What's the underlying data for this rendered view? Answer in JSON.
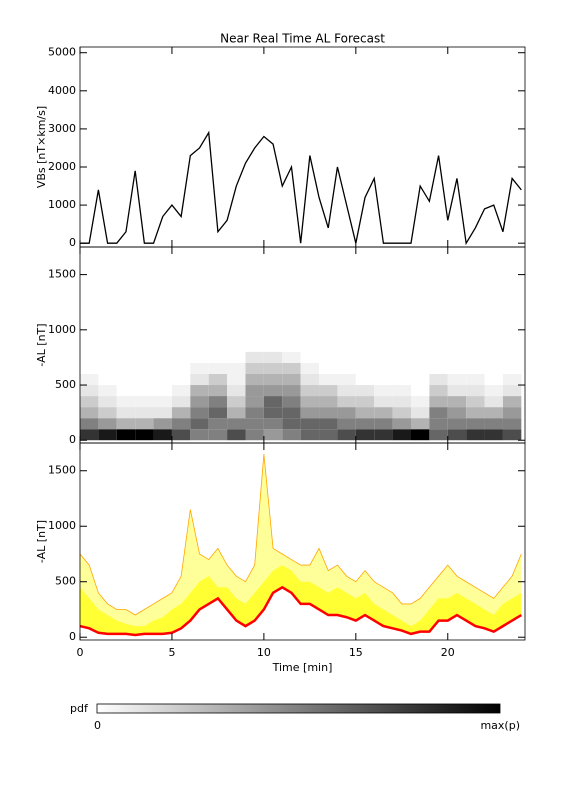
{
  "chart_data": [
    {
      "type": "line",
      "title": "Near Real Time AL Forecast",
      "ylabel": "VBs [nT×km/s]",
      "x": [
        0,
        0.5,
        1,
        1.5,
        2,
        2.5,
        3,
        3.5,
        4,
        4.5,
        5,
        5.5,
        6,
        6.5,
        7,
        7.5,
        8,
        8.5,
        9,
        9.5,
        10,
        10.5,
        11,
        11.5,
        12,
        12.5,
        13,
        13.5,
        14,
        14.5,
        15,
        15.5,
        16,
        16.5,
        17,
        17.5,
        18,
        18.5,
        19,
        19.5,
        20,
        20.5,
        21,
        21.5,
        22,
        22.5,
        23,
        23.5,
        24
      ],
      "values": [
        0,
        0,
        1400,
        0,
        0,
        300,
        1900,
        0,
        0,
        700,
        1000,
        700,
        2300,
        2500,
        2900,
        300,
        600,
        1500,
        2100,
        2500,
        2800,
        2600,
        1500,
        2000,
        0,
        2300,
        1200,
        400,
        2000,
        1000,
        0,
        1200,
        1700,
        0,
        0,
        0,
        0,
        1500,
        1100,
        2300,
        600,
        1700,
        0,
        400,
        900,
        1000,
        300,
        1700,
        1400
      ],
      "color": "#000000",
      "xlim": [
        0,
        24.2
      ],
      "xticks": [
        0,
        5,
        10,
        15,
        20
      ],
      "ylim": [
        -100,
        5150
      ],
      "yticks": [
        0,
        1000,
        2000,
        3000,
        4000,
        5000
      ]
    },
    {
      "type": "heatmap",
      "ylabel": "-AL [nT]",
      "xbins": [
        0,
        1,
        2,
        3,
        4,
        5,
        6,
        7,
        8,
        9,
        10,
        11,
        12,
        13,
        14,
        15,
        16,
        17,
        18,
        19,
        20,
        21,
        22,
        23,
        24
      ],
      "ybins": [
        0,
        100,
        200,
        300,
        400,
        500,
        600,
        700,
        800
      ],
      "values": [
        [
          0.8,
          0.5,
          0.3,
          0.2,
          0.1,
          0.05,
          0,
          0
        ],
        [
          0.9,
          0.4,
          0.2,
          0.1,
          0.05,
          0,
          0,
          0
        ],
        [
          1,
          0.3,
          0.1,
          0.05,
          0,
          0,
          0,
          0
        ],
        [
          1,
          0.3,
          0.1,
          0.05,
          0,
          0,
          0,
          0
        ],
        [
          0.9,
          0.4,
          0.1,
          0.05,
          0,
          0,
          0,
          0
        ],
        [
          0.7,
          0.5,
          0.3,
          0.1,
          0.05,
          0,
          0,
          0
        ],
        [
          0.5,
          0.6,
          0.5,
          0.4,
          0.3,
          0.1,
          0.05,
          0
        ],
        [
          0.5,
          0.5,
          0.6,
          0.5,
          0.3,
          0.2,
          0.05,
          0
        ],
        [
          0.7,
          0.5,
          0.3,
          0.2,
          0.1,
          0.05,
          0.05,
          0
        ],
        [
          0.5,
          0.5,
          0.5,
          0.4,
          0.4,
          0.3,
          0.2,
          0.1
        ],
        [
          0.4,
          0.5,
          0.6,
          0.6,
          0.4,
          0.3,
          0.2,
          0.1
        ],
        [
          0.5,
          0.6,
          0.6,
          0.5,
          0.4,
          0.3,
          0.2,
          0.05
        ],
        [
          0.6,
          0.6,
          0.4,
          0.3,
          0.2,
          0.1,
          0.05,
          0
        ],
        [
          0.6,
          0.6,
          0.4,
          0.3,
          0.2,
          0.05,
          0,
          0
        ],
        [
          0.7,
          0.5,
          0.4,
          0.2,
          0.1,
          0.05,
          0,
          0
        ],
        [
          0.8,
          0.5,
          0.3,
          0.2,
          0.1,
          0,
          0,
          0
        ],
        [
          0.8,
          0.5,
          0.3,
          0.1,
          0.05,
          0,
          0,
          0
        ],
        [
          0.9,
          0.4,
          0.2,
          0.1,
          0.05,
          0,
          0,
          0
        ],
        [
          1,
          0.3,
          0.1,
          0.05,
          0,
          0,
          0,
          0
        ],
        [
          0.6,
          0.5,
          0.5,
          0.3,
          0.2,
          0.1,
          0,
          0
        ],
        [
          0.7,
          0.5,
          0.4,
          0.3,
          0.1,
          0.05,
          0,
          0
        ],
        [
          0.8,
          0.5,
          0.3,
          0.2,
          0.1,
          0.05,
          0,
          0
        ],
        [
          0.8,
          0.5,
          0.3,
          0.1,
          0.05,
          0,
          0,
          0
        ],
        [
          0.7,
          0.5,
          0.4,
          0.3,
          0.1,
          0.05,
          0,
          0
        ]
      ],
      "xlim": [
        0,
        24.2
      ],
      "xticks": [
        0,
        5,
        10,
        15,
        20
      ],
      "ylim": [
        -25,
        1750
      ],
      "yticks": [
        0,
        500,
        1000,
        1500
      ]
    },
    {
      "type": "band",
      "ylabel": "-AL [nT]",
      "xlabel": "Time [min]",
      "x": [
        0,
        0.5,
        1,
        1.5,
        2,
        2.5,
        3,
        3.5,
        4,
        4.5,
        5,
        5.5,
        6,
        6.5,
        7,
        7.5,
        8,
        8.5,
        9,
        9.5,
        10,
        10.5,
        11,
        11.5,
        12,
        12.5,
        13,
        13.5,
        14,
        14.5,
        15,
        15.5,
        16,
        16.5,
        17,
        17.5,
        18,
        18.5,
        19,
        19.5,
        20,
        20.5,
        21,
        21.5,
        22,
        22.5,
        23,
        23.5,
        24
      ],
      "series": [
        {
          "color": "#ffa500",
          "fill": "#ffff99",
          "values": [
            750,
            650,
            400,
            300,
            250,
            250,
            200,
            250,
            300,
            350,
            400,
            550,
            1150,
            750,
            700,
            800,
            650,
            550,
            500,
            650,
            1650,
            800,
            750,
            700,
            650,
            650,
            800,
            600,
            650,
            550,
            500,
            600,
            500,
            450,
            400,
            300,
            300,
            350,
            450,
            550,
            650,
            550,
            500,
            450,
            400,
            350,
            450,
            550,
            750
          ]
        },
        {
          "color": "#ffff33",
          "values": [
            450,
            350,
            250,
            200,
            150,
            120,
            100,
            100,
            150,
            180,
            250,
            300,
            400,
            500,
            550,
            450,
            450,
            350,
            300,
            400,
            500,
            600,
            650,
            600,
            500,
            500,
            450,
            400,
            450,
            400,
            350,
            400,
            300,
            250,
            200,
            150,
            100,
            150,
            250,
            350,
            350,
            400,
            350,
            300,
            250,
            200,
            300,
            350,
            400
          ]
        },
        {
          "color": "#ff0000",
          "values": [
            100,
            80,
            40,
            30,
            30,
            30,
            20,
            30,
            30,
            30,
            40,
            80,
            150,
            250,
            300,
            350,
            250,
            150,
            100,
            150,
            250,
            400,
            450,
            400,
            300,
            300,
            250,
            200,
            200,
            180,
            150,
            200,
            150,
            100,
            80,
            60,
            30,
            50,
            50,
            150,
            150,
            200,
            150,
            100,
            80,
            50,
            100,
            150,
            200
          ]
        }
      ],
      "xlim": [
        0,
        24.2
      ],
      "xticks": [
        0,
        5,
        10,
        15,
        20
      ],
      "ylim": [
        -25,
        1750
      ],
      "yticks": [
        0,
        500,
        1000,
        1500
      ]
    }
  ],
  "colorbar": {
    "label": "pdf",
    "min_label": "0",
    "max_label": "max(p)"
  }
}
